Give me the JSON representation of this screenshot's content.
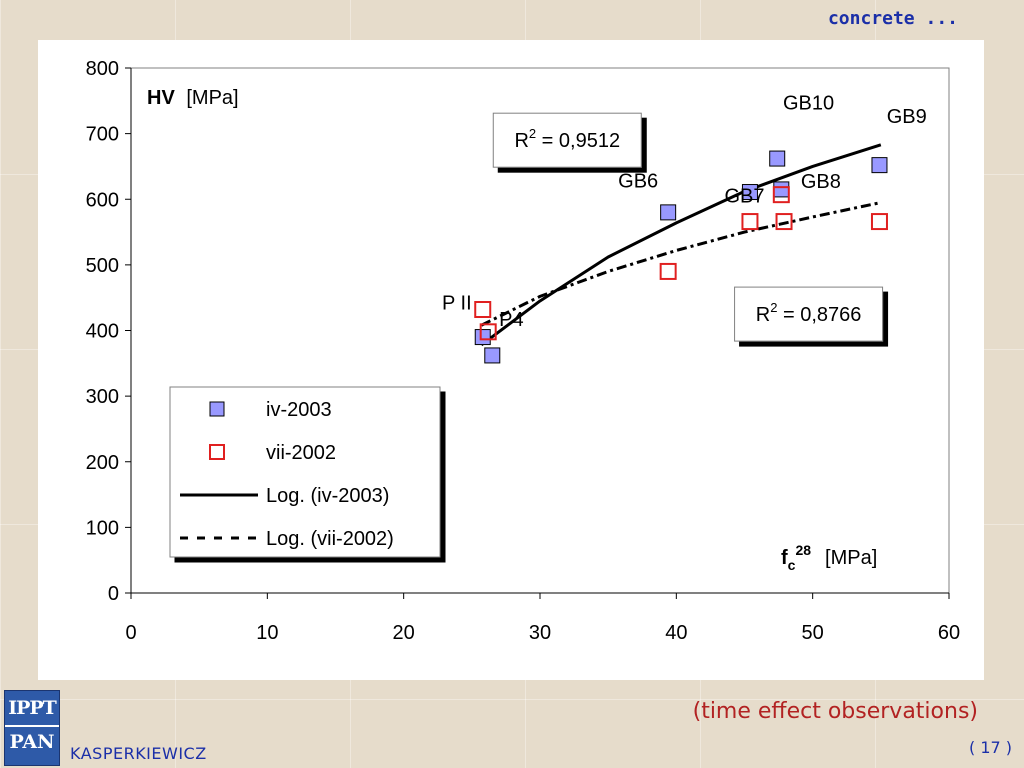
{
  "header": {
    "section_label": "concrete ..."
  },
  "footer": {
    "caption": "(time effect observations)",
    "page": "( 17 )",
    "author": "KASPERKIEWICZ",
    "logo_top": "IPPT",
    "logo_bottom": "PAN"
  },
  "chart_data": {
    "type": "scatter",
    "title": "",
    "ylabel_bold": "HV",
    "ylabel_unit": "[MPa]",
    "xlabel_main": "f",
    "xlabel_sub": "c",
    "xlabel_sup": "28",
    "xlabel_unit": "[MPa]",
    "xlim": [
      0,
      60
    ],
    "ylim": [
      0,
      800
    ],
    "x_ticks": [
      "0",
      "10",
      "20",
      "30",
      "40",
      "50",
      "60"
    ],
    "y_ticks": [
      "0",
      "100",
      "200",
      "300",
      "400",
      "500",
      "600",
      "700",
      "800"
    ],
    "grid": false,
    "legend_position": "bottom-left",
    "series": [
      {
        "name": "iv-2003",
        "marker": "filled-square",
        "color": "#9999ff",
        "points": [
          [
            25.8,
            390
          ],
          [
            26.5,
            362
          ],
          [
            39.4,
            580
          ],
          [
            45.4,
            611
          ],
          [
            47.4,
            662
          ],
          [
            47.7,
            615
          ],
          [
            54.9,
            652
          ]
        ]
      },
      {
        "name": "vii-2002",
        "marker": "open-square",
        "color": "#e02020",
        "points": [
          [
            25.8,
            432
          ],
          [
            26.2,
            398
          ],
          [
            39.4,
            490
          ],
          [
            45.4,
            566
          ],
          [
            47.7,
            607
          ],
          [
            47.9,
            566
          ],
          [
            54.9,
            566
          ]
        ]
      }
    ],
    "trendlines": [
      {
        "name": "Log. (iv-2003)",
        "style": "solid",
        "x_range": [
          25.7,
          55
        ],
        "points": [
          [
            25.7,
            378
          ],
          [
            30,
            445
          ],
          [
            35,
            512
          ],
          [
            40,
            564
          ],
          [
            45,
            612
          ],
          [
            50,
            650
          ],
          [
            55,
            683
          ]
        ]
      },
      {
        "name": "Log. (vii-2002)",
        "style": "dashed",
        "x_range": [
          25.7,
          55
        ],
        "points": [
          [
            25.7,
            408
          ],
          [
            30,
            452
          ],
          [
            35,
            490
          ],
          [
            40,
            522
          ],
          [
            45,
            550
          ],
          [
            50,
            573
          ],
          [
            55,
            595
          ]
        ]
      }
    ],
    "point_labels": [
      {
        "text": "P II",
        "x": 23.9,
        "y": 432
      },
      {
        "text": "P4",
        "x": 27.9,
        "y": 407
      },
      {
        "text": "GB6",
        "x": 37.2,
        "y": 618
      },
      {
        "text": "GB7",
        "x": 45.0,
        "y": 595
      },
      {
        "text": "GB8",
        "x": 50.6,
        "y": 617
      },
      {
        "text": "GB10",
        "x": 49.7,
        "y": 737
      },
      {
        "text": "GB9",
        "x": 56.9,
        "y": 716
      }
    ],
    "annotations": [
      {
        "text_main": "R",
        "text_sup": "2",
        "text_rest": " = 0,9512",
        "x": 32.0,
        "y": 690
      },
      {
        "text_main": "R",
        "text_sup": "2",
        "text_rest": " = 0,8766",
        "x": 49.7,
        "y": 425
      }
    ]
  }
}
